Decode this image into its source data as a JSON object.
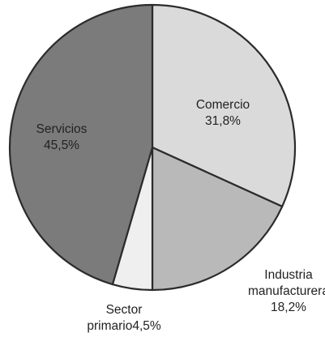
{
  "chart_data": {
    "type": "pie",
    "title": "",
    "slices": [
      {
        "name": "Comercio",
        "value": 31.8,
        "value_label": "31,8%",
        "label_lines": [
          "Comercio",
          "31,8%"
        ],
        "color": "#dadada"
      },
      {
        "name": "Industria manufacturera",
        "value": 18.2,
        "value_label": "18,2%",
        "label_lines": [
          "Industria",
          "manufacturera",
          "18,2%"
        ],
        "color": "#b9b9b9"
      },
      {
        "name": "Sector primario",
        "value": 4.5,
        "value_label": "4,5%",
        "label_lines": [
          "Sector",
          "primario4,5%"
        ],
        "color": "#efefef"
      },
      {
        "name": "Servicios",
        "value": 45.5,
        "value_label": "45,5%",
        "label_lines": [
          "Servicios",
          "45,5%"
        ],
        "color": "#7b7b7b"
      }
    ],
    "start_angle_deg": 0,
    "direction": "clockwise",
    "legend": "none"
  }
}
